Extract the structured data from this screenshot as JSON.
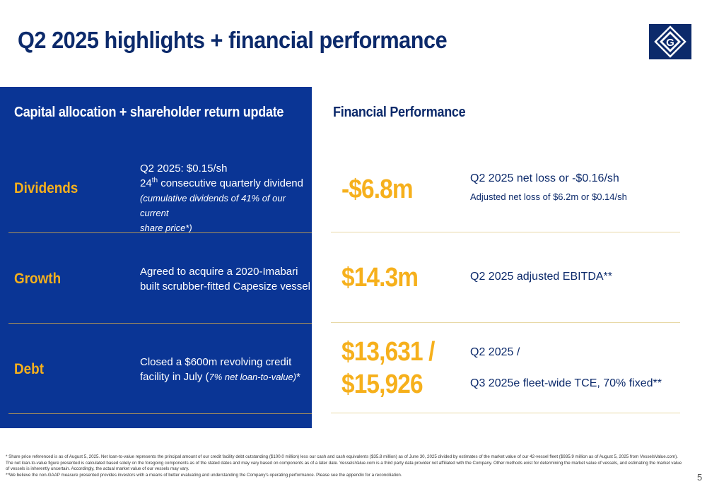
{
  "title": "Q2 2025 highlights + financial performance",
  "colors": {
    "navy": "#0a3595",
    "title_navy": "#0c2a6b",
    "gold": "#f6b01c"
  },
  "left": {
    "heading": "Capital allocation + shareholder return update",
    "rows": [
      {
        "label": "Dividends",
        "line1": "Q2 2025: $0.15/sh",
        "line2_num": "24",
        "line2_sup": "th",
        "line2_rest": " consecutive quarterly dividend",
        "italic1": "(cumulative dividends of 41% of our current",
        "italic2": "share price*)"
      },
      {
        "label": "Growth",
        "line1": "Agreed to acquire a 2020-Imabari",
        "line2": "built scrubber-fitted Capesize vessel"
      },
      {
        "label": "Debt",
        "line1": "Closed a $600m revolving credit",
        "line2_pre": "facility in July (",
        "line2_italic": "7% net loan-to-value)",
        "line2_post": "*"
      }
    ]
  },
  "right": {
    "heading": "Financial Performance",
    "rows": [
      {
        "value": "-$6.8m",
        "text": "Q2 2025 net loss or -$0.16/sh",
        "sub": "Adjusted net loss of $6.2m or $0.14/sh"
      },
      {
        "value": "$14.3m",
        "text": "Q2 2025 adjusted EBITDA**"
      },
      {
        "value_line1": "$13,631 /",
        "value_line2": "$15,926",
        "text1": "Q2 2025 /",
        "text2": "Q3 2025e fleet-wide TCE, 70% fixed**"
      }
    ]
  },
  "footnotes": [
    "* Share price referenced is as of August 5, 2025. Net loan-to-value represents the principal amount of our credit facility debt outstanding ($100.0 million) less our cash and cash equivalents ($35.8 million) as of June 30, 2025 divided by estimates of the market value of our 42-vessel fleet ($935.9 million as of August 5, 2025 from VesselsValue.com).  The net loan-to-value figure presented is calculated based solely on the foregoing components as of the stated dates and may vary based on components as of a later date.  VesselsValue.com is a third party data provider not affiliated with the Company.  Other methods exist for determining the market value of vessels, and estimating the market value of vessels is inherently uncertain.  Accordingly, the actual market value of our vessels may vary.",
    "**We believe the non-GAAP measure presented provides investors with a means of better evaluating and understanding the Company's operating performance. Please see the appendix for a reconciliation."
  ],
  "logo_letter": "G",
  "page_number": "5"
}
